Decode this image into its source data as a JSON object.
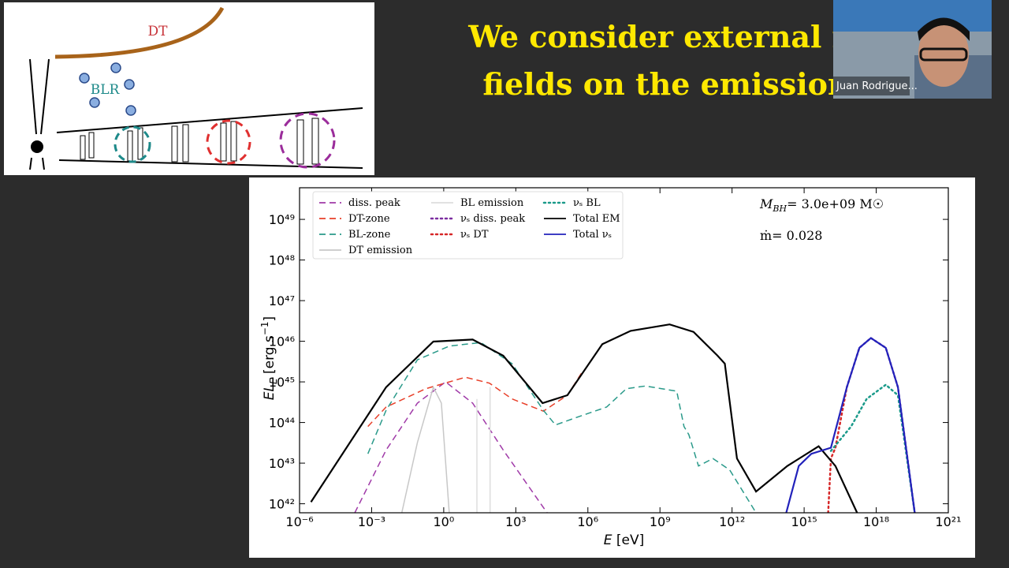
{
  "slide": {
    "title_line1": "We consider external r",
    "title_line2": "fields on the emission"
  },
  "diagram": {
    "dt_label": "DT",
    "blr_label": "BLR"
  },
  "participant": {
    "name": "Juan Rodrigue..."
  },
  "chart_data": {
    "type": "line",
    "xscale": "log",
    "yscale": "log",
    "x_label": [
      "E",
      " [eV]"
    ],
    "y_label": [
      "EL",
      "E",
      " [erg s",
      "−1",
      "]"
    ],
    "annotations": {
      "mass": [
        "M",
        "BH",
        "= 3.0e+09 M☉"
      ],
      "accretion": "ṁ= 0.028"
    },
    "xlim": [
      1e-06,
      1e+21
    ],
    "ylim": [
      6e+41,
      6e+49
    ],
    "xticks": [
      {
        "value": 1e-06,
        "label": "10⁻⁶"
      },
      {
        "value": 0.001,
        "label": "10⁻³"
      },
      {
        "value": 1,
        "label": "10⁰"
      },
      {
        "value": 1000.0,
        "label": "10³"
      },
      {
        "value": 1000000.0,
        "label": "10⁶"
      },
      {
        "value": 1000000000.0,
        "label": "10⁹"
      },
      {
        "value": 1000000000000.0,
        "label": "10¹²"
      },
      {
        "value": 1000000000000000.0,
        "label": "10¹⁵"
      },
      {
        "value": 1e+18,
        "label": "10¹⁸"
      },
      {
        "value": 1e+21,
        "label": "10²¹"
      }
    ],
    "yticks": [
      {
        "value": 1e+42,
        "label": "10⁴²"
      },
      {
        "value": 1e+43,
        "label": "10⁴³"
      },
      {
        "value": 1e+44,
        "label": "10⁴⁴"
      },
      {
        "value": 1e+45,
        "label": "10⁴⁵"
      },
      {
        "value": 1e+46,
        "label": "10⁴⁶"
      },
      {
        "value": 1e+47,
        "label": "10⁴⁷"
      },
      {
        "value": 1e+48,
        "label": "10⁴⁸"
      },
      {
        "value": 1e+49,
        "label": "10⁴⁹"
      }
    ],
    "legend": "upper left",
    "series": [
      {
        "name": "diss. peak",
        "color": "#a03aa8",
        "linestyle": "dashed",
        "x": [
          0.0002,
          0.004,
          0.08,
          1.2,
          16,
          300,
          20000.0
        ],
        "values": [
          6e+41,
          2.1e+43,
          3e+44,
          1e+45,
          3e+44,
          2.1e+43,
          6e+41
        ]
      },
      {
        "name": "DT-zone",
        "color": "#e8402a",
        "linestyle": "dashed",
        "x": [
          0.0007,
          0.004,
          0.18,
          8,
          80,
          700,
          14000.0,
          140000.0,
          600000.0
        ],
        "values": [
          8e+43,
          2.4e+44,
          6.8e+44,
          1.3e+45,
          9.3e+44,
          3.8e+44,
          1.9e+44,
          4.7e+44,
          1.8e+45
        ]
      },
      {
        "name": "BL-zone",
        "color": "#2a9a8a",
        "linestyle": "dashed",
        "x": [
          0.0007,
          0.004,
          0.08,
          1.7,
          35,
          700,
          14000.0,
          45000.0,
          300000.0,
          6000000.0,
          40000000.0,
          250000000.0,
          5000000000.0,
          10000000000.0,
          16000000000.0,
          40000000000.0,
          160000000000.0,
          800000000000.0,
          10000000000000.0
        ],
        "values": [
          1.7e+43,
          2e+44,
          3.5e+45,
          7.6e+45,
          9.3e+45,
          2.8e+45,
          2e+44,
          8.7e+43,
          1.3e+44,
          2.4e+44,
          6.8e+44,
          7.9e+44,
          5.9e+44,
          8e+43,
          5e+43,
          8.5e+42,
          1.3e+43,
          6.8e+42,
          6e+41
        ]
      },
      {
        "name": "DT emission",
        "color": "#c8c8c8",
        "linestyle": "solid",
        "x": [
          0.018,
          0.08,
          0.37,
          0.8,
          1.7
        ],
        "values": [
          6e+41,
          3.2e+43,
          7.4e+44,
          3e+44,
          6e+41
        ]
      },
      {
        "name": "BL emission",
        "color": "#dddddd",
        "linestyle": "solid",
        "x": [
          24,
          24,
          null,
          85,
          85
        ],
        "values": [
          6e+41,
          3.8e+44,
          null,
          6e+41,
          7.4e+44
        ]
      },
      {
        "name": "νₛ diss. peak",
        "color": "#7b2da0",
        "linestyle": "dotted",
        "x": [
          6e+16,
          2e+17,
          6e+17,
          2.5e+18,
          8e+18,
          4e+19
        ],
        "values": [
          7.4e+44,
          6.9e+45,
          1.2e+46,
          6.9e+45,
          7.4e+44,
          6e+41
        ]
      },
      {
        "name": "νₛ DT",
        "color": "#d62728",
        "linestyle": "dotted",
        "x": [
          1e+16,
          1.3e+16,
          2e+16,
          6e+16
        ],
        "values": [
          6e+41,
          1.3e+43,
          2.4e+43,
          7.4e+44
        ]
      },
      {
        "name": "νₛ BL",
        "color": "#1a9a8a",
        "linestyle": "dotted",
        "x": [
          1.3e+16,
          9e+16,
          4e+17,
          2.5e+18,
          8e+18,
          4e+19
        ],
        "values": [
          2e+43,
          8e+43,
          3.8e+44,
          8.5e+44,
          4.7e+44,
          6e+41
        ]
      },
      {
        "name": "Total EM",
        "color": "#000000",
        "linestyle": "solid",
        "x": [
          3e-06,
          0.004,
          0.37,
          16,
          300,
          13000.0,
          140000.0,
          4000000.0,
          60000000.0,
          2500000000.0,
          25000000000.0,
          250000000000.0,
          500000000000.0,
          1600000000000.0,
          10000000000000.0,
          200000000000000.0,
          4000000000000000.0,
          2e+16,
          1.6e+17
        ],
        "values": [
          1.1e+42,
          7.4e+44,
          9.8e+45,
          1.1e+46,
          4.4e+45,
          3e+44,
          4.7e+44,
          8.5e+45,
          1.8e+46,
          2.6e+46,
          1.7e+46,
          4.4e+45,
          2.8e+45,
          1.3e+43,
          2e+42,
          8.5e+42,
          2.6e+43,
          8.5e+42,
          6e+41
        ]
      },
      {
        "name": "Total νₛ",
        "color": "#2222bb",
        "linestyle": "solid",
        "x": [
          180000000000000.0,
          600000000000000.0,
          2000000000000000.0,
          1.3e+16,
          6e+16,
          2e+17,
          6e+17,
          2.5e+18,
          8e+18,
          4e+19
        ],
        "values": [
          6e+41,
          8.5e+42,
          1.7e+43,
          2.4e+43,
          7.4e+44,
          6.9e+45,
          1.2e+46,
          6.9e+45,
          7.4e+44,
          6e+41
        ]
      }
    ]
  }
}
